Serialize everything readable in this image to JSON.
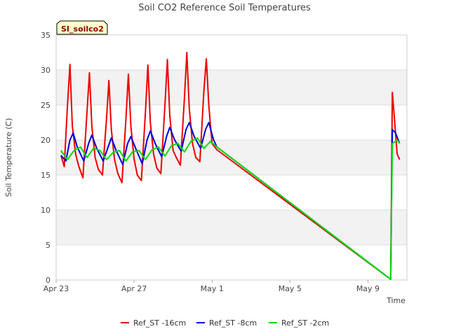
{
  "chart_data": {
    "type": "line",
    "title": "Soil CO2 Reference Soil Temperatures",
    "xlabel": "Time",
    "ylabel": "Soil Temperature (C)",
    "site_badge": "SI_soilco2",
    "ylim": [
      0,
      35
    ],
    "yticks": [
      0,
      5,
      10,
      15,
      20,
      25,
      30,
      35
    ],
    "xlim": [
      "2024-04-23",
      "2024-05-11"
    ],
    "xticks": [
      {
        "date": "2024-04-23",
        "label": "Apr 23"
      },
      {
        "date": "2024-04-27",
        "label": "Apr 27"
      },
      {
        "date": "2024-05-01",
        "label": "May 1"
      },
      {
        "date": "2024-05-05",
        "label": "May 5"
      },
      {
        "date": "2024-05-09",
        "label": "May 9"
      }
    ],
    "grid": "horizontal bands",
    "legend_position": "bottom",
    "series": [
      {
        "name": "Ref_ST -16cm",
        "color": "#ee0000",
        "points": [
          [
            "2024-04-23 06:00",
            17.8
          ],
          [
            "2024-04-23 10:00",
            16.2
          ],
          [
            "2024-04-23 14:00",
            25.0
          ],
          [
            "2024-04-23 17:00",
            30.8
          ],
          [
            "2024-04-23 20:00",
            22.0
          ],
          [
            "2024-04-24 00:00",
            18.0
          ],
          [
            "2024-04-24 04:00",
            16.2
          ],
          [
            "2024-04-24 09:00",
            14.6
          ],
          [
            "2024-04-24 14:00",
            24.0
          ],
          [
            "2024-04-24 17:00",
            29.6
          ],
          [
            "2024-04-24 20:00",
            22.0
          ],
          [
            "2024-04-25 00:00",
            17.5
          ],
          [
            "2024-04-25 04:00",
            15.8
          ],
          [
            "2024-04-25 09:00",
            15.0
          ],
          [
            "2024-04-25 14:00",
            23.0
          ],
          [
            "2024-04-25 17:00",
            28.5
          ],
          [
            "2024-04-25 20:00",
            21.5
          ],
          [
            "2024-04-26 00:00",
            17.2
          ],
          [
            "2024-04-26 04:00",
            15.2
          ],
          [
            "2024-04-26 09:00",
            13.9
          ],
          [
            "2024-04-26 14:00",
            23.0
          ],
          [
            "2024-04-26 17:00",
            29.4
          ],
          [
            "2024-04-26 20:00",
            22.0
          ],
          [
            "2024-04-27 00:00",
            17.3
          ],
          [
            "2024-04-27 04:00",
            15.0
          ],
          [
            "2024-04-27 09:00",
            14.2
          ],
          [
            "2024-04-27 14:00",
            24.0
          ],
          [
            "2024-04-27 17:00",
            30.7
          ],
          [
            "2024-04-27 20:00",
            22.5
          ],
          [
            "2024-04-28 00:00",
            18.0
          ],
          [
            "2024-04-28 04:00",
            16.0
          ],
          [
            "2024-04-28 09:00",
            15.2
          ],
          [
            "2024-04-28 14:00",
            25.0
          ],
          [
            "2024-04-28 17:00",
            31.5
          ],
          [
            "2024-04-28 20:00",
            23.5
          ],
          [
            "2024-04-29 00:00",
            18.5
          ],
          [
            "2024-04-29 04:00",
            17.5
          ],
          [
            "2024-04-29 09:00",
            16.4
          ],
          [
            "2024-04-29 14:00",
            26.0
          ],
          [
            "2024-04-29 17:00",
            32.5
          ],
          [
            "2024-04-29 20:00",
            24.5
          ],
          [
            "2024-04-30 00:00",
            19.5
          ],
          [
            "2024-04-30 04:00",
            17.5
          ],
          [
            "2024-04-30 09:00",
            16.9
          ],
          [
            "2024-04-30 14:00",
            27.0
          ],
          [
            "2024-04-30 17:00",
            31.6
          ],
          [
            "2024-04-30 20:00",
            25.0
          ],
          [
            "2024-05-01 00:00",
            19.5
          ],
          [
            "2024-05-01 06:00",
            18.6
          ],
          [
            "2024-05-10 04:00",
            0.1
          ],
          [
            "2024-05-10 06:00",
            26.8
          ],
          [
            "2024-05-10 08:00",
            24.0
          ],
          [
            "2024-05-10 12:00",
            18.0
          ],
          [
            "2024-05-10 15:00",
            17.2
          ]
        ]
      },
      {
        "name": "Ref_ST -8cm",
        "color": "#0000dd",
        "points": [
          [
            "2024-04-23 06:00",
            17.8
          ],
          [
            "2024-04-23 12:00",
            17.0
          ],
          [
            "2024-04-23 17:00",
            20.0
          ],
          [
            "2024-04-23 21:00",
            21.0
          ],
          [
            "2024-04-24 02:00",
            19.0
          ],
          [
            "2024-04-24 10:00",
            17.0
          ],
          [
            "2024-04-24 16:00",
            19.5
          ],
          [
            "2024-04-24 20:00",
            20.7
          ],
          [
            "2024-04-25 02:00",
            18.8
          ],
          [
            "2024-04-25 10:00",
            17.0
          ],
          [
            "2024-04-25 16:00",
            19.0
          ],
          [
            "2024-04-25 20:00",
            20.3
          ],
          [
            "2024-04-26 02:00",
            18.5
          ],
          [
            "2024-04-26 10:00",
            16.5
          ],
          [
            "2024-04-26 16:00",
            19.5
          ],
          [
            "2024-04-26 20:00",
            20.5
          ],
          [
            "2024-04-27 02:00",
            18.8
          ],
          [
            "2024-04-27 10:00",
            16.6
          ],
          [
            "2024-04-27 16:00",
            20.0
          ],
          [
            "2024-04-27 20:00",
            21.3
          ],
          [
            "2024-04-28 02:00",
            19.5
          ],
          [
            "2024-04-28 10:00",
            17.6
          ],
          [
            "2024-04-28 16:00",
            20.5
          ],
          [
            "2024-04-28 20:00",
            21.8
          ],
          [
            "2024-04-29 02:00",
            20.0
          ],
          [
            "2024-04-29 10:00",
            18.4
          ],
          [
            "2024-04-29 16:00",
            21.5
          ],
          [
            "2024-04-29 20:00",
            22.5
          ],
          [
            "2024-04-30 02:00",
            20.5
          ],
          [
            "2024-04-30 10:00",
            18.8
          ],
          [
            "2024-04-30 16:00",
            21.5
          ],
          [
            "2024-04-30 20:00",
            22.5
          ],
          [
            "2024-05-01 02:00",
            20.0
          ],
          [
            "2024-05-01 06:00",
            19.0
          ],
          [
            "2024-05-10 04:00",
            0.1
          ],
          [
            "2024-05-10 06:00",
            21.5
          ],
          [
            "2024-05-10 10:00",
            21.0
          ],
          [
            "2024-05-10 15:00",
            19.5
          ]
        ]
      },
      {
        "name": "Ref_ST -2cm",
        "color": "#00dd00",
        "points": [
          [
            "2024-04-23 06:00",
            18.5
          ],
          [
            "2024-04-23 14:00",
            17.2
          ],
          [
            "2024-04-23 22:00",
            18.5
          ],
          [
            "2024-04-24 06:00",
            19.0
          ],
          [
            "2024-04-24 14:00",
            17.5
          ],
          [
            "2024-04-24 22:00",
            18.8
          ],
          [
            "2024-04-25 06:00",
            18.5
          ],
          [
            "2024-04-25 14:00",
            17.2
          ],
          [
            "2024-04-25 22:00",
            18.2
          ],
          [
            "2024-04-26 06:00",
            18.5
          ],
          [
            "2024-04-26 14:00",
            17.0
          ],
          [
            "2024-04-26 22:00",
            18.3
          ],
          [
            "2024-04-27 06:00",
            18.5
          ],
          [
            "2024-04-27 14:00",
            17.2
          ],
          [
            "2024-04-27 22:00",
            18.6
          ],
          [
            "2024-04-28 06:00",
            19.0
          ],
          [
            "2024-04-28 14:00",
            17.7
          ],
          [
            "2024-04-28 22:00",
            19.2
          ],
          [
            "2024-04-29 06:00",
            19.5
          ],
          [
            "2024-04-29 14:00",
            18.3
          ],
          [
            "2024-04-29 22:00",
            19.8
          ],
          [
            "2024-04-30 06:00",
            20.3
          ],
          [
            "2024-04-30 14:00",
            18.8
          ],
          [
            "2024-04-30 22:00",
            19.8
          ],
          [
            "2024-05-01 06:00",
            19.0
          ],
          [
            "2024-05-10 04:00",
            0.1
          ],
          [
            "2024-05-10 06:00",
            19.5
          ],
          [
            "2024-05-10 12:00",
            20.0
          ],
          [
            "2024-05-10 15:00",
            19.5
          ]
        ]
      }
    ]
  }
}
